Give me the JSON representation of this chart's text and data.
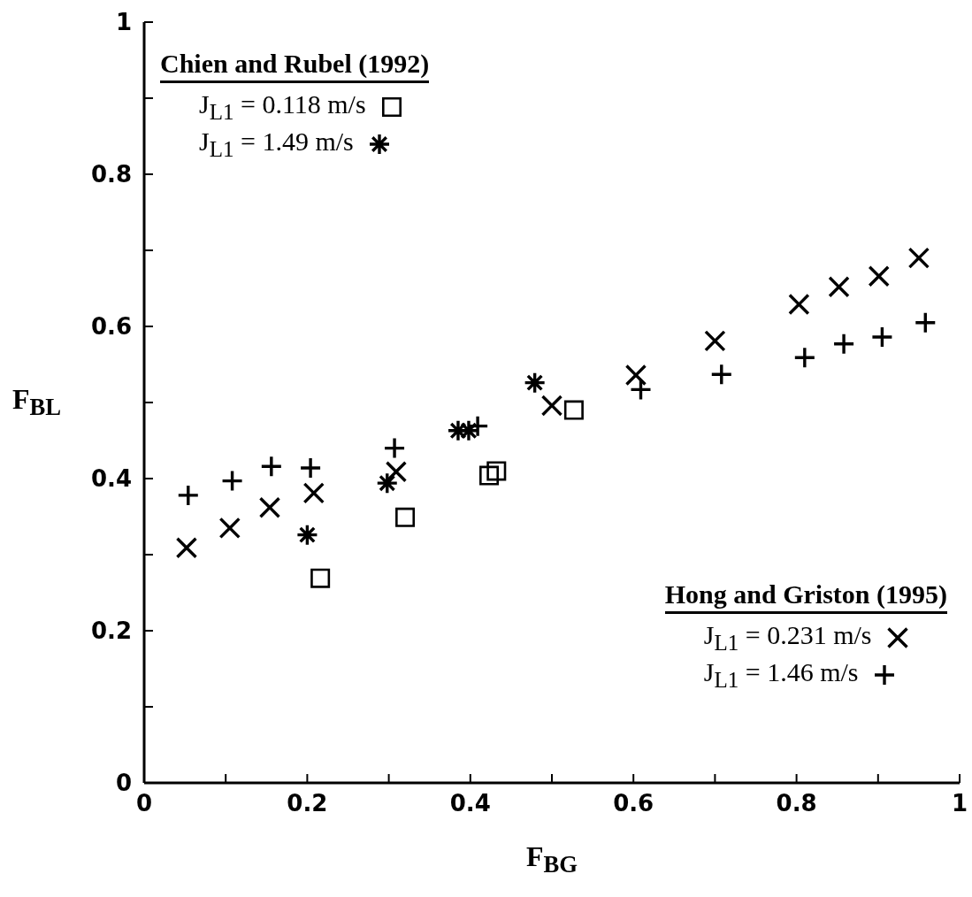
{
  "chart_data": {
    "type": "scatter",
    "xlabel": "F$_{BG}$",
    "ylabel": "F$_{BL}$",
    "xlim": [
      0,
      1
    ],
    "ylim": [
      0,
      1
    ],
    "xticks": [
      0,
      {
        "value": 0.1,
        "label": null
      },
      0.2,
      {
        "value": 0.3,
        "label": null
      },
      0.4,
      {
        "value": 0.5,
        "label": null
      },
      0.6,
      {
        "value": 0.7,
        "label": null
      },
      0.8,
      {
        "value": 0.9,
        "label": null
      },
      1
    ],
    "yticks": [
      0,
      {
        "value": 0.1,
        "label": null
      },
      0.2,
      {
        "value": 0.3,
        "label": null
      },
      0.4,
      {
        "value": 0.5,
        "label": null
      },
      0.6,
      {
        "value": 0.7,
        "label": null
      },
      0.8,
      {
        "value": 0.9,
        "label": null
      },
      1
    ],
    "grid": false,
    "legend": "top left",
    "annotations": [
      "Chien and Rubel (1992)",
      "Hong and Griston (1995)"
    ],
    "series": [
      {
        "name": "J$_{L1}$ = 0.118 m/s",
        "color": "#000000",
        "marker": "square",
        "x": [
          0.216,
          0.32,
          0.423,
          0.432,
          0.527
        ],
        "values": [
          0.269,
          0.349,
          0.404,
          0.41,
          0.49
        ]
      },
      {
        "name": "J$_{L1}$ = 1.49 m/s",
        "color": "#000000",
        "marker": "star",
        "x": [
          0.2,
          0.298,
          0.385,
          0.398,
          0.479
        ],
        "values": [
          0.326,
          0.394,
          0.463,
          0.463,
          0.526
        ]
      },
      {
        "name": "J$_{L1}$ = 0.231 m/s",
        "color": "#000000",
        "x": [
          0.052,
          0.105,
          0.154,
          0.208,
          0.309,
          0.5,
          0.603,
          0.7,
          0.803,
          0.852,
          0.901,
          0.95
        ],
        "values": [
          0.309,
          0.335,
          0.362,
          0.381,
          0.409,
          0.496,
          0.536,
          0.581,
          0.629,
          0.652,
          0.666,
          0.69
        ]
      },
      {
        "name": "J$_{L1}$ = 1.46 m/s",
        "color": "#000000",
        "marker": "cross",
        "x": [
          0.054,
          0.108,
          0.156,
          0.204,
          0.307,
          0.409,
          0.609,
          0.708,
          0.81,
          0.858,
          0.905,
          0.958
        ],
        "values": [
          0.378,
          0.397,
          0.416,
          0.414,
          0.44,
          0.469,
          0.517,
          0.537,
          0.559,
          0.577,
          0.586,
          0.605
        ]
      }
    ]
  }
}
